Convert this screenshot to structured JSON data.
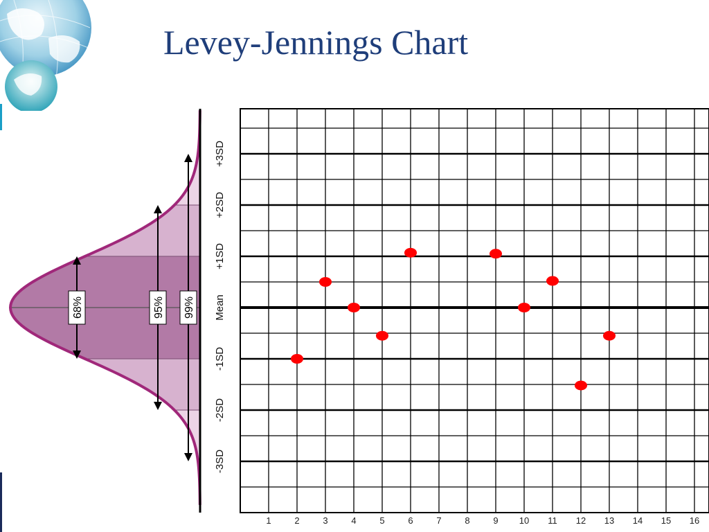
{
  "slide": {
    "title": "Levey-Jennings Chart"
  },
  "colors": {
    "title": "#1f3e7a",
    "curve": "#a0287a",
    "band_68": "#b27aa6",
    "band_95": "#d7b2cf",
    "band_99": "#ecd4e6",
    "points": "#ff0000",
    "grid": "#000000"
  },
  "icons": {
    "logo": "globe-icon"
  },
  "chart_data": {
    "type": "scatter",
    "x_tick_labels": [
      "1",
      "2",
      "3",
      "4",
      "5",
      "6",
      "7",
      "8",
      "9",
      "10",
      "11",
      "12",
      "13",
      "14",
      "15",
      "16"
    ],
    "y_level_labels": [
      "+3SD",
      "+2SD",
      "+1SD",
      "Mean",
      "-1SD",
      "-2SD",
      "-3SD"
    ],
    "y_level_values": [
      3,
      2,
      1,
      0,
      -1,
      -2,
      -3
    ],
    "points": [
      {
        "x": 2,
        "y": -1.0
      },
      {
        "x": 3,
        "y": 0.5
      },
      {
        "x": 4,
        "y": 0.0
      },
      {
        "x": 5,
        "y": -0.55
      },
      {
        "x": 6,
        "y": 1.07
      },
      {
        "x": 9,
        "y": 1.05
      },
      {
        "x": 10,
        "y": 0.0
      },
      {
        "x": 11,
        "y": 0.52
      },
      {
        "x": 12,
        "y": -1.52
      },
      {
        "x": 13,
        "y": -0.55
      }
    ],
    "xlim": [
      0,
      16.5
    ],
    "ylim": [
      -4,
      4
    ],
    "grid": true,
    "distribution_labels": [
      "68%",
      "95%",
      "99%"
    ]
  }
}
